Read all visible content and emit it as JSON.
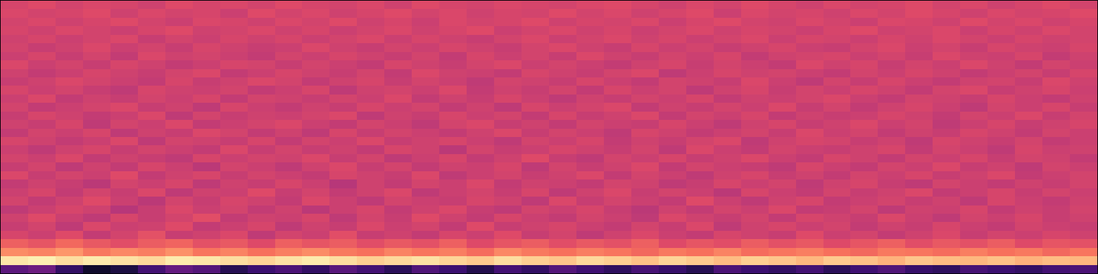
{
  "chart_data": {
    "type": "heatmap",
    "tick_labels": false,
    "zlim": [
      0,
      1
    ],
    "cells": [
      [
        0.28,
        0.32,
        0.18,
        0.08,
        0.12,
        0.22,
        0.3,
        0.26,
        0.15,
        0.2,
        0.24,
        0.18,
        0.27,
        0.22,
        0.16,
        0.25,
        0.2,
        0.14,
        0.22,
        0.18,
        0.26,
        0.21,
        0.17,
        0.23,
        0.19,
        0.15,
        0.24,
        0.2,
        0.18,
        0.22,
        0.16,
        0.21,
        0.25,
        0.19,
        0.17,
        0.23,
        0.2,
        0.18,
        0.22,
        0.24
      ],
      [
        0.95,
        0.97,
        0.93,
        0.96,
        0.94,
        0.92,
        0.96,
        0.95,
        0.93,
        0.91,
        0.94,
        0.96,
        0.93,
        0.9,
        0.92,
        0.94,
        0.91,
        0.89,
        0.93,
        0.9,
        0.88,
        0.92,
        0.9,
        0.87,
        0.91,
        0.89,
        0.86,
        0.9,
        0.88,
        0.85,
        0.89,
        0.87,
        0.84,
        0.88,
        0.86,
        0.85,
        0.87,
        0.84,
        0.86,
        0.85
      ],
      [
        0.76,
        0.74,
        0.78,
        0.72,
        0.75,
        0.73,
        0.77,
        0.71,
        0.74,
        0.7,
        0.73,
        0.76,
        0.72,
        0.7,
        0.74,
        0.71,
        0.73,
        0.69,
        0.75,
        0.72,
        0.7,
        0.73,
        0.71,
        0.68,
        0.72,
        0.7,
        0.74,
        0.69,
        0.71,
        0.73,
        0.7,
        0.68,
        0.72,
        0.71,
        0.69,
        0.73,
        0.7,
        0.72,
        0.68,
        0.71
      ],
      [
        0.66,
        0.63,
        0.68,
        0.64,
        0.61,
        0.65,
        0.67,
        0.62,
        0.64,
        0.6,
        0.66,
        0.63,
        0.65,
        0.61,
        0.64,
        0.62,
        0.66,
        0.6,
        0.63,
        0.65,
        0.61,
        0.64,
        0.62,
        0.66,
        0.6,
        0.63,
        0.61,
        0.65,
        0.62,
        0.64,
        0.6,
        0.63,
        0.66,
        0.61,
        0.64,
        0.62,
        0.65,
        0.6,
        0.63,
        0.62
      ],
      [
        0.58,
        0.55,
        0.6,
        0.53,
        0.57,
        0.62,
        0.54,
        0.56,
        0.59,
        0.52,
        0.57,
        0.55,
        0.61,
        0.54,
        0.56,
        0.53,
        0.58,
        0.55,
        0.6,
        0.54,
        0.57,
        0.52,
        0.56,
        0.59,
        0.55,
        0.53,
        0.58,
        0.56,
        0.54,
        0.6,
        0.55,
        0.57,
        0.53,
        0.56,
        0.59,
        0.54,
        0.57,
        0.55,
        0.58,
        0.56
      ],
      [
        0.54,
        0.57,
        0.52,
        0.59,
        0.55,
        0.56,
        0.6,
        0.53,
        0.55,
        0.58,
        0.52,
        0.56,
        0.54,
        0.59,
        0.55,
        0.57,
        0.53,
        0.6,
        0.54,
        0.56,
        0.58,
        0.55,
        0.53,
        0.57,
        0.54,
        0.59,
        0.52,
        0.56,
        0.58,
        0.55,
        0.57,
        0.53,
        0.56,
        0.54,
        0.58,
        0.55,
        0.53,
        0.57,
        0.55,
        0.54
      ],
      [
        0.56,
        0.6,
        0.55,
        0.52,
        0.58,
        0.54,
        0.57,
        0.61,
        0.53,
        0.56,
        0.55,
        0.58,
        0.52,
        0.57,
        0.54,
        0.6,
        0.56,
        0.53,
        0.58,
        0.55,
        0.53,
        0.57,
        0.55,
        0.52,
        0.59,
        0.56,
        0.54,
        0.57,
        0.53,
        0.58,
        0.56,
        0.54,
        0.59,
        0.55,
        0.52,
        0.57,
        0.55,
        0.58,
        0.54,
        0.56
      ],
      [
        0.52,
        0.55,
        0.58,
        0.56,
        0.5,
        0.54,
        0.59,
        0.55,
        0.57,
        0.53,
        0.56,
        0.51,
        0.55,
        0.58,
        0.53,
        0.56,
        0.59,
        0.54,
        0.52,
        0.57,
        0.55,
        0.58,
        0.54,
        0.51,
        0.56,
        0.53,
        0.57,
        0.55,
        0.59,
        0.53,
        0.54,
        0.57,
        0.52,
        0.56,
        0.55,
        0.58,
        0.53,
        0.56,
        0.54,
        0.57
      ],
      [
        0.57,
        0.53,
        0.56,
        0.6,
        0.55,
        0.51,
        0.57,
        0.54,
        0.58,
        0.56,
        0.53,
        0.59,
        0.55,
        0.52,
        0.57,
        0.55,
        0.54,
        0.58,
        0.56,
        0.52,
        0.59,
        0.54,
        0.57,
        0.55,
        0.53,
        0.6,
        0.55,
        0.52,
        0.56,
        0.58,
        0.53,
        0.55,
        0.57,
        0.54,
        0.56,
        0.52,
        0.58,
        0.55,
        0.53,
        0.56
      ],
      [
        0.55,
        0.58,
        0.53,
        0.57,
        0.54,
        0.59,
        0.52,
        0.56,
        0.55,
        0.6,
        0.54,
        0.57,
        0.53,
        0.56,
        0.59,
        0.52,
        0.55,
        0.57,
        0.54,
        0.58,
        0.52,
        0.56,
        0.59,
        0.54,
        0.57,
        0.55,
        0.51,
        0.58,
        0.55,
        0.53,
        0.57,
        0.54,
        0.56,
        0.59,
        0.53,
        0.55,
        0.58,
        0.54,
        0.57,
        0.55
      ],
      [
        0.53,
        0.56,
        0.54,
        0.51,
        0.57,
        0.55,
        0.58,
        0.52,
        0.56,
        0.54,
        0.58,
        0.55,
        0.5,
        0.56,
        0.53,
        0.57,
        0.55,
        0.59,
        0.53,
        0.56,
        0.55,
        0.53,
        0.57,
        0.56,
        0.52,
        0.54,
        0.58,
        0.55,
        0.57,
        0.52,
        0.56,
        0.58,
        0.54,
        0.52,
        0.57,
        0.55,
        0.53,
        0.56,
        0.54,
        0.57
      ],
      [
        0.59,
        0.54,
        0.57,
        0.55,
        0.6,
        0.53,
        0.56,
        0.58,
        0.54,
        0.57,
        0.55,
        0.53,
        0.58,
        0.56,
        0.54,
        0.59,
        0.52,
        0.55,
        0.57,
        0.54,
        0.56,
        0.59,
        0.53,
        0.57,
        0.55,
        0.52,
        0.56,
        0.58,
        0.54,
        0.56,
        0.53,
        0.57,
        0.55,
        0.58,
        0.54,
        0.56,
        0.59,
        0.53,
        0.55,
        0.57
      ],
      [
        0.54,
        0.57,
        0.52,
        0.56,
        0.53,
        0.58,
        0.55,
        0.51,
        0.57,
        0.55,
        0.52,
        0.56,
        0.59,
        0.54,
        0.57,
        0.53,
        0.56,
        0.55,
        0.58,
        0.52,
        0.57,
        0.54,
        0.56,
        0.59,
        0.53,
        0.57,
        0.55,
        0.54,
        0.52,
        0.58,
        0.55,
        0.53,
        0.57,
        0.55,
        0.59,
        0.54,
        0.56,
        0.52,
        0.57,
        0.55
      ],
      [
        0.57,
        0.55,
        0.59,
        0.53,
        0.56,
        0.54,
        0.52,
        0.58,
        0.55,
        0.57,
        0.56,
        0.59,
        0.54,
        0.57,
        0.52,
        0.55,
        0.58,
        0.53,
        0.56,
        0.6,
        0.54,
        0.52,
        0.57,
        0.55,
        0.58,
        0.54,
        0.56,
        0.59,
        0.55,
        0.53,
        0.58,
        0.56,
        0.53,
        0.57,
        0.55,
        0.58,
        0.54,
        0.57,
        0.56,
        0.53
      ],
      [
        0.55,
        0.52,
        0.56,
        0.58,
        0.54,
        0.57,
        0.55,
        0.53,
        0.59,
        0.54,
        0.57,
        0.54,
        0.56,
        0.53,
        0.58,
        0.56,
        0.51,
        0.57,
        0.54,
        0.55,
        0.58,
        0.56,
        0.54,
        0.57,
        0.52,
        0.59,
        0.55,
        0.53,
        0.57,
        0.55,
        0.54,
        0.56,
        0.58,
        0.53,
        0.57,
        0.55,
        0.52,
        0.58,
        0.55,
        0.56
      ],
      [
        0.58,
        0.56,
        0.53,
        0.55,
        0.59,
        0.52,
        0.57,
        0.56,
        0.54,
        0.58,
        0.53,
        0.57,
        0.55,
        0.59,
        0.54,
        0.56,
        0.58,
        0.55,
        0.52,
        0.57,
        0.55,
        0.58,
        0.53,
        0.56,
        0.54,
        0.57,
        0.59,
        0.52,
        0.56,
        0.58,
        0.57,
        0.54,
        0.56,
        0.52,
        0.58,
        0.56,
        0.54,
        0.57,
        0.53,
        0.55
      ],
      [
        0.53,
        0.57,
        0.55,
        0.58,
        0.52,
        0.56,
        0.54,
        0.59,
        0.57,
        0.53,
        0.56,
        0.52,
        0.58,
        0.54,
        0.57,
        0.55,
        0.53,
        0.56,
        0.59,
        0.54,
        0.57,
        0.55,
        0.52,
        0.58,
        0.56,
        0.53,
        0.55,
        0.57,
        0.54,
        0.59,
        0.55,
        0.57,
        0.53,
        0.56,
        0.54,
        0.58,
        0.56,
        0.53,
        0.57,
        0.55
      ],
      [
        0.56,
        0.54,
        0.58,
        0.52,
        0.57,
        0.55,
        0.59,
        0.53,
        0.55,
        0.57,
        0.59,
        0.55,
        0.53,
        0.57,
        0.55,
        0.52,
        0.57,
        0.59,
        0.54,
        0.56,
        0.53,
        0.57,
        0.55,
        0.54,
        0.58,
        0.55,
        0.52,
        0.56,
        0.58,
        0.54,
        0.56,
        0.59,
        0.55,
        0.57,
        0.52,
        0.55,
        0.58,
        0.54,
        0.56,
        0.58
      ],
      [
        0.54,
        0.58,
        0.56,
        0.53,
        0.55,
        0.59,
        0.52,
        0.57,
        0.54,
        0.56,
        0.55,
        0.57,
        0.59,
        0.52,
        0.56,
        0.54,
        0.58,
        0.55,
        0.57,
        0.53,
        0.58,
        0.54,
        0.56,
        0.59,
        0.53,
        0.57,
        0.55,
        0.58,
        0.53,
        0.56,
        0.54,
        0.55,
        0.58,
        0.56,
        0.53,
        0.57,
        0.55,
        0.59,
        0.54,
        0.57
      ],
      [
        0.57,
        0.53,
        0.55,
        0.57,
        0.59,
        0.54,
        0.56,
        0.52,
        0.58,
        0.55,
        0.53,
        0.56,
        0.54,
        0.58,
        0.55,
        0.57,
        0.53,
        0.56,
        0.52,
        0.58,
        0.55,
        0.57,
        0.59,
        0.53,
        0.56,
        0.54,
        0.57,
        0.55,
        0.59,
        0.54,
        0.57,
        0.53,
        0.56,
        0.58,
        0.55,
        0.52,
        0.57,
        0.55,
        0.58,
        0.54
      ],
      [
        0.55,
        0.59,
        0.53,
        0.56,
        0.54,
        0.57,
        0.55,
        0.58,
        0.53,
        0.57,
        0.56,
        0.54,
        0.57,
        0.55,
        0.59,
        0.53,
        0.56,
        0.54,
        0.58,
        0.55,
        0.52,
        0.56,
        0.54,
        0.57,
        0.55,
        0.58,
        0.53,
        0.56,
        0.55,
        0.57,
        0.59,
        0.55,
        0.53,
        0.57,
        0.56,
        0.54,
        0.58,
        0.55,
        0.53,
        0.56
      ],
      [
        0.58,
        0.55,
        0.57,
        0.54,
        0.52,
        0.58,
        0.56,
        0.55,
        0.57,
        0.53,
        0.55,
        0.58,
        0.52,
        0.56,
        0.57,
        0.55,
        0.59,
        0.53,
        0.56,
        0.54,
        0.57,
        0.53,
        0.58,
        0.55,
        0.57,
        0.52,
        0.56,
        0.58,
        0.54,
        0.57,
        0.55,
        0.58,
        0.56,
        0.53,
        0.57,
        0.59,
        0.54,
        0.56,
        0.58,
        0.55
      ],
      [
        0.54,
        0.56,
        0.59,
        0.57,
        0.55,
        0.53,
        0.58,
        0.54,
        0.56,
        0.59,
        0.57,
        0.53,
        0.56,
        0.58,
        0.54,
        0.57,
        0.55,
        0.52,
        0.57,
        0.56,
        0.54,
        0.58,
        0.55,
        0.53,
        0.57,
        0.56,
        0.54,
        0.59,
        0.55,
        0.52,
        0.57,
        0.54,
        0.58,
        0.55,
        0.53,
        0.56,
        0.57,
        0.54,
        0.59,
        0.56
      ],
      [
        0.56,
        0.53,
        0.55,
        0.58,
        0.56,
        0.54,
        0.57,
        0.59,
        0.53,
        0.55,
        0.58,
        0.56,
        0.54,
        0.57,
        0.53,
        0.59,
        0.56,
        0.55,
        0.53,
        0.58,
        0.56,
        0.54,
        0.57,
        0.59,
        0.52,
        0.55,
        0.58,
        0.56,
        0.57,
        0.55,
        0.53,
        0.57,
        0.55,
        0.58,
        0.56,
        0.53,
        0.55,
        0.57,
        0.54,
        0.58
      ],
      [
        0.59,
        0.55,
        0.57,
        0.54,
        0.58,
        0.56,
        0.53,
        0.55,
        0.58,
        0.57,
        0.54,
        0.57,
        0.55,
        0.53,
        0.58,
        0.56,
        0.54,
        0.57,
        0.59,
        0.55,
        0.57,
        0.55,
        0.53,
        0.56,
        0.58,
        0.54,
        0.57,
        0.55,
        0.53,
        0.59,
        0.56,
        0.58,
        0.54,
        0.57,
        0.55,
        0.59,
        0.56,
        0.53,
        0.57,
        0.55
      ],
      [
        0.55,
        0.58,
        0.54,
        0.57,
        0.53,
        0.59,
        0.56,
        0.57,
        0.55,
        0.53,
        0.57,
        0.55,
        0.58,
        0.56,
        0.54,
        0.57,
        0.53,
        0.58,
        0.55,
        0.57,
        0.54,
        0.59,
        0.56,
        0.54,
        0.57,
        0.55,
        0.58,
        0.53,
        0.56,
        0.57,
        0.58,
        0.55,
        0.57,
        0.54,
        0.59,
        0.56,
        0.55,
        0.58,
        0.53,
        0.56
      ],
      [
        0.57,
        0.54,
        0.56,
        0.59,
        0.55,
        0.57,
        0.54,
        0.58,
        0.56,
        0.54,
        0.55,
        0.59,
        0.56,
        0.54,
        0.57,
        0.55,
        0.58,
        0.56,
        0.54,
        0.57,
        0.59,
        0.56,
        0.54,
        0.58,
        0.55,
        0.57,
        0.54,
        0.56,
        0.58,
        0.55,
        0.54,
        0.57,
        0.59,
        0.55,
        0.57,
        0.54,
        0.58,
        0.56,
        0.55,
        0.58
      ],
      [
        0.56,
        0.58,
        0.55,
        0.57,
        0.59,
        0.54,
        0.57,
        0.55,
        0.58,
        0.56,
        0.58,
        0.55,
        0.57,
        0.59,
        0.55,
        0.58,
        0.56,
        0.54,
        0.57,
        0.59,
        0.55,
        0.57,
        0.59,
        0.56,
        0.58,
        0.55,
        0.57,
        0.59,
        0.55,
        0.58,
        0.57,
        0.55,
        0.58,
        0.56,
        0.59,
        0.57,
        0.55,
        0.58,
        0.56,
        0.57
      ],
      [
        0.58,
        0.56,
        0.59,
        0.57,
        0.55,
        0.58,
        0.6,
        0.56,
        0.57,
        0.59,
        0.56,
        0.58,
        0.55,
        0.57,
        0.59,
        0.56,
        0.58,
        0.6,
        0.55,
        0.57,
        0.59,
        0.56,
        0.58,
        0.55,
        0.57,
        0.59,
        0.56,
        0.58,
        0.57,
        0.55,
        0.58,
        0.6,
        0.56,
        0.57,
        0.59,
        0.55,
        0.58,
        0.56,
        0.59,
        0.57
      ],
      [
        0.57,
        0.59,
        0.56,
        0.58,
        0.6,
        0.57,
        0.55,
        0.59,
        0.58,
        0.56,
        0.59,
        0.57,
        0.6,
        0.56,
        0.58,
        0.55,
        0.59,
        0.57,
        0.58,
        0.6,
        0.56,
        0.58,
        0.57,
        0.59,
        0.55,
        0.58,
        0.6,
        0.57,
        0.56,
        0.59,
        0.57,
        0.55,
        0.59,
        0.58,
        0.56,
        0.6,
        0.57,
        0.59,
        0.56,
        0.58
      ],
      [
        0.59,
        0.57,
        0.58,
        0.6,
        0.56,
        0.59,
        0.57,
        0.58,
        0.55,
        0.6,
        0.57,
        0.59,
        0.56,
        0.58,
        0.6,
        0.57,
        0.59,
        0.56,
        0.58,
        0.57,
        0.6,
        0.57,
        0.59,
        0.56,
        0.58,
        0.6,
        0.55,
        0.59,
        0.57,
        0.58,
        0.56,
        0.59,
        0.57,
        0.6,
        0.58,
        0.56,
        0.59,
        0.57,
        0.58,
        0.6
      ],
      [
        0.58,
        0.6,
        0.57,
        0.59,
        0.58,
        0.56,
        0.6,
        0.58,
        0.59,
        0.57,
        0.6,
        0.58,
        0.57,
        0.59,
        0.56,
        0.6,
        0.58,
        0.57,
        0.59,
        0.58,
        0.57,
        0.59,
        0.6,
        0.58,
        0.56,
        0.59,
        0.57,
        0.6,
        0.58,
        0.56,
        0.59,
        0.57,
        0.58,
        0.6,
        0.57,
        0.59,
        0.56,
        0.58,
        0.6,
        0.57
      ]
    ]
  }
}
